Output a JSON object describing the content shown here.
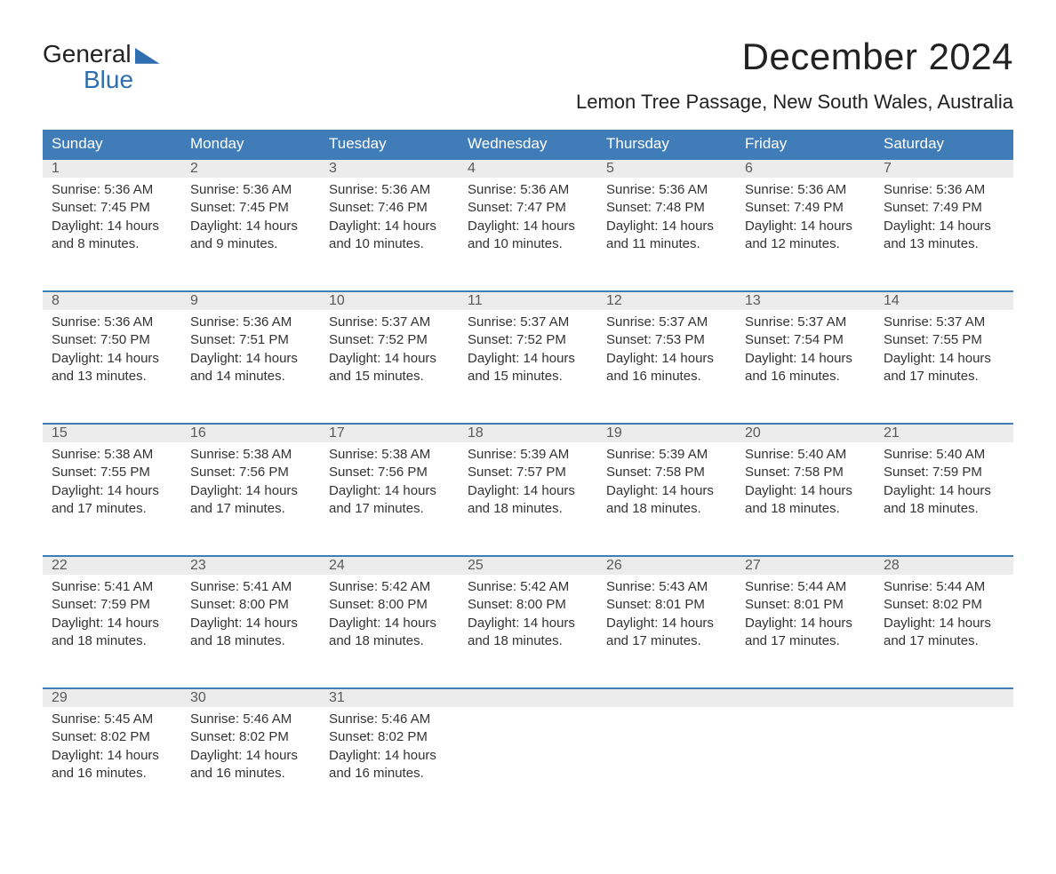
{
  "brand": {
    "top": "General",
    "bottom": "Blue"
  },
  "title": "December 2024",
  "location": "Lemon Tree Passage, New South Wales, Australia",
  "colors": {
    "header_bg": "#3f7cb8",
    "header_text": "#ffffff",
    "daynum_bg": "#ececec",
    "week_border": "#3f7cb8",
    "text": "#333333",
    "brand_blue": "#2f6fb0",
    "page_bg": "#ffffff"
  },
  "typography": {
    "month_title_size_pt": 32,
    "location_size_pt": 17,
    "dayname_size_pt": 13,
    "body_size_pt": 11
  },
  "day_names": [
    "Sunday",
    "Monday",
    "Tuesday",
    "Wednesday",
    "Thursday",
    "Friday",
    "Saturday"
  ],
  "weeks": [
    [
      {
        "n": "1",
        "sunrise": "Sunrise: 5:36 AM",
        "sunset": "Sunset: 7:45 PM",
        "daylight": "Daylight: 14 hours and 8 minutes."
      },
      {
        "n": "2",
        "sunrise": "Sunrise: 5:36 AM",
        "sunset": "Sunset: 7:45 PM",
        "daylight": "Daylight: 14 hours and 9 minutes."
      },
      {
        "n": "3",
        "sunrise": "Sunrise: 5:36 AM",
        "sunset": "Sunset: 7:46 PM",
        "daylight": "Daylight: 14 hours and 10 minutes."
      },
      {
        "n": "4",
        "sunrise": "Sunrise: 5:36 AM",
        "sunset": "Sunset: 7:47 PM",
        "daylight": "Daylight: 14 hours and 10 minutes."
      },
      {
        "n": "5",
        "sunrise": "Sunrise: 5:36 AM",
        "sunset": "Sunset: 7:48 PM",
        "daylight": "Daylight: 14 hours and 11 minutes."
      },
      {
        "n": "6",
        "sunrise": "Sunrise: 5:36 AM",
        "sunset": "Sunset: 7:49 PM",
        "daylight": "Daylight: 14 hours and 12 minutes."
      },
      {
        "n": "7",
        "sunrise": "Sunrise: 5:36 AM",
        "sunset": "Sunset: 7:49 PM",
        "daylight": "Daylight: 14 hours and 13 minutes."
      }
    ],
    [
      {
        "n": "8",
        "sunrise": "Sunrise: 5:36 AM",
        "sunset": "Sunset: 7:50 PM",
        "daylight": "Daylight: 14 hours and 13 minutes."
      },
      {
        "n": "9",
        "sunrise": "Sunrise: 5:36 AM",
        "sunset": "Sunset: 7:51 PM",
        "daylight": "Daylight: 14 hours and 14 minutes."
      },
      {
        "n": "10",
        "sunrise": "Sunrise: 5:37 AM",
        "sunset": "Sunset: 7:52 PM",
        "daylight": "Daylight: 14 hours and 15 minutes."
      },
      {
        "n": "11",
        "sunrise": "Sunrise: 5:37 AM",
        "sunset": "Sunset: 7:52 PM",
        "daylight": "Daylight: 14 hours and 15 minutes."
      },
      {
        "n": "12",
        "sunrise": "Sunrise: 5:37 AM",
        "sunset": "Sunset: 7:53 PM",
        "daylight": "Daylight: 14 hours and 16 minutes."
      },
      {
        "n": "13",
        "sunrise": "Sunrise: 5:37 AM",
        "sunset": "Sunset: 7:54 PM",
        "daylight": "Daylight: 14 hours and 16 minutes."
      },
      {
        "n": "14",
        "sunrise": "Sunrise: 5:37 AM",
        "sunset": "Sunset: 7:55 PM",
        "daylight": "Daylight: 14 hours and 17 minutes."
      }
    ],
    [
      {
        "n": "15",
        "sunrise": "Sunrise: 5:38 AM",
        "sunset": "Sunset: 7:55 PM",
        "daylight": "Daylight: 14 hours and 17 minutes."
      },
      {
        "n": "16",
        "sunrise": "Sunrise: 5:38 AM",
        "sunset": "Sunset: 7:56 PM",
        "daylight": "Daylight: 14 hours and 17 minutes."
      },
      {
        "n": "17",
        "sunrise": "Sunrise: 5:38 AM",
        "sunset": "Sunset: 7:56 PM",
        "daylight": "Daylight: 14 hours and 17 minutes."
      },
      {
        "n": "18",
        "sunrise": "Sunrise: 5:39 AM",
        "sunset": "Sunset: 7:57 PM",
        "daylight": "Daylight: 14 hours and 18 minutes."
      },
      {
        "n": "19",
        "sunrise": "Sunrise: 5:39 AM",
        "sunset": "Sunset: 7:58 PM",
        "daylight": "Daylight: 14 hours and 18 minutes."
      },
      {
        "n": "20",
        "sunrise": "Sunrise: 5:40 AM",
        "sunset": "Sunset: 7:58 PM",
        "daylight": "Daylight: 14 hours and 18 minutes."
      },
      {
        "n": "21",
        "sunrise": "Sunrise: 5:40 AM",
        "sunset": "Sunset: 7:59 PM",
        "daylight": "Daylight: 14 hours and 18 minutes."
      }
    ],
    [
      {
        "n": "22",
        "sunrise": "Sunrise: 5:41 AM",
        "sunset": "Sunset: 7:59 PM",
        "daylight": "Daylight: 14 hours and 18 minutes."
      },
      {
        "n": "23",
        "sunrise": "Sunrise: 5:41 AM",
        "sunset": "Sunset: 8:00 PM",
        "daylight": "Daylight: 14 hours and 18 minutes."
      },
      {
        "n": "24",
        "sunrise": "Sunrise: 5:42 AM",
        "sunset": "Sunset: 8:00 PM",
        "daylight": "Daylight: 14 hours and 18 minutes."
      },
      {
        "n": "25",
        "sunrise": "Sunrise: 5:42 AM",
        "sunset": "Sunset: 8:00 PM",
        "daylight": "Daylight: 14 hours and 18 minutes."
      },
      {
        "n": "26",
        "sunrise": "Sunrise: 5:43 AM",
        "sunset": "Sunset: 8:01 PM",
        "daylight": "Daylight: 14 hours and 17 minutes."
      },
      {
        "n": "27",
        "sunrise": "Sunrise: 5:44 AM",
        "sunset": "Sunset: 8:01 PM",
        "daylight": "Daylight: 14 hours and 17 minutes."
      },
      {
        "n": "28",
        "sunrise": "Sunrise: 5:44 AM",
        "sunset": "Sunset: 8:02 PM",
        "daylight": "Daylight: 14 hours and 17 minutes."
      }
    ],
    [
      {
        "n": "29",
        "sunrise": "Sunrise: 5:45 AM",
        "sunset": "Sunset: 8:02 PM",
        "daylight": "Daylight: 14 hours and 16 minutes."
      },
      {
        "n": "30",
        "sunrise": "Sunrise: 5:46 AM",
        "sunset": "Sunset: 8:02 PM",
        "daylight": "Daylight: 14 hours and 16 minutes."
      },
      {
        "n": "31",
        "sunrise": "Sunrise: 5:46 AM",
        "sunset": "Sunset: 8:02 PM",
        "daylight": "Daylight: 14 hours and 16 minutes."
      },
      null,
      null,
      null,
      null
    ]
  ]
}
